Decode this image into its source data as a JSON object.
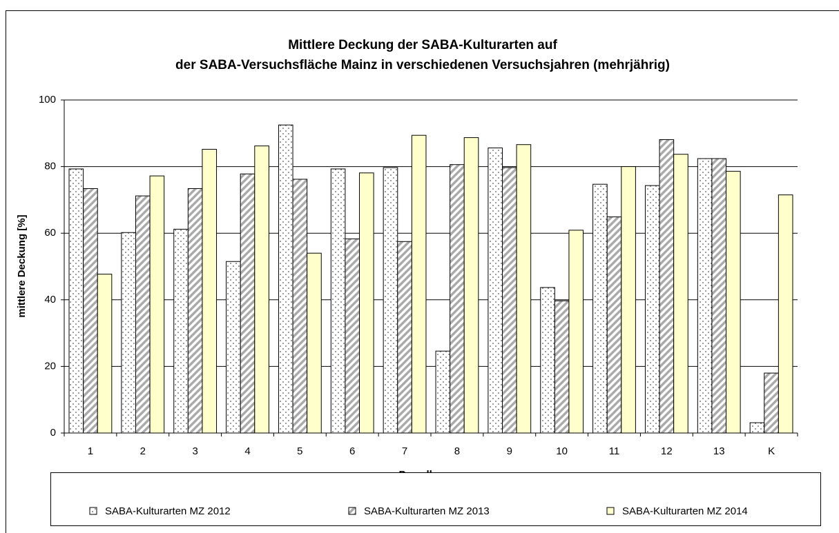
{
  "chart_data": {
    "type": "bar",
    "title": [
      "Mittlere Deckung der SABA-Kulturarten auf",
      "der SABA-Versuchsfläche Mainz in verschiedenen Versuchsjahren (mehrjährig)"
    ],
    "xlabel": "Parzellennummer",
    "ylabel": "mittlere Deckung [%]",
    "categories": [
      "1",
      "2",
      "3",
      "4",
      "5",
      "6",
      "7",
      "8",
      "9",
      "10",
      "11",
      "12",
      "13",
      "K"
    ],
    "series": [
      {
        "name": "SABA-Kulturarten MZ 2012",
        "color": "#ffffff",
        "pattern": "dots",
        "values": [
          79.3,
          60.2,
          61.2,
          51.5,
          92.5,
          79.3,
          79.7,
          24.6,
          85.6,
          43.7,
          74.7,
          74.3,
          82.4,
          3.1
        ]
      },
      {
        "name": "SABA-Kulturarten MZ 2013",
        "color": "#ffffff",
        "pattern": "hatch",
        "values": [
          73.4,
          71.2,
          73.4,
          77.8,
          76.2,
          58.3,
          57.5,
          80.6,
          79.7,
          39.7,
          64.9,
          88.1,
          82.4,
          18.0
        ]
      },
      {
        "name": "SABA-Kulturarten MZ 2014",
        "color": "#ffffcc",
        "pattern": "solid",
        "values": [
          47.7,
          77.2,
          85.2,
          86.2,
          54.0,
          78.1,
          89.4,
          88.7,
          86.6,
          60.9,
          80.0,
          83.7,
          78.6,
          71.5
        ]
      }
    ],
    "ylim": [
      0,
      100
    ],
    "yticks": [
      0,
      20,
      40,
      60,
      80,
      100
    ],
    "grid": true,
    "legend": "bottom"
  }
}
